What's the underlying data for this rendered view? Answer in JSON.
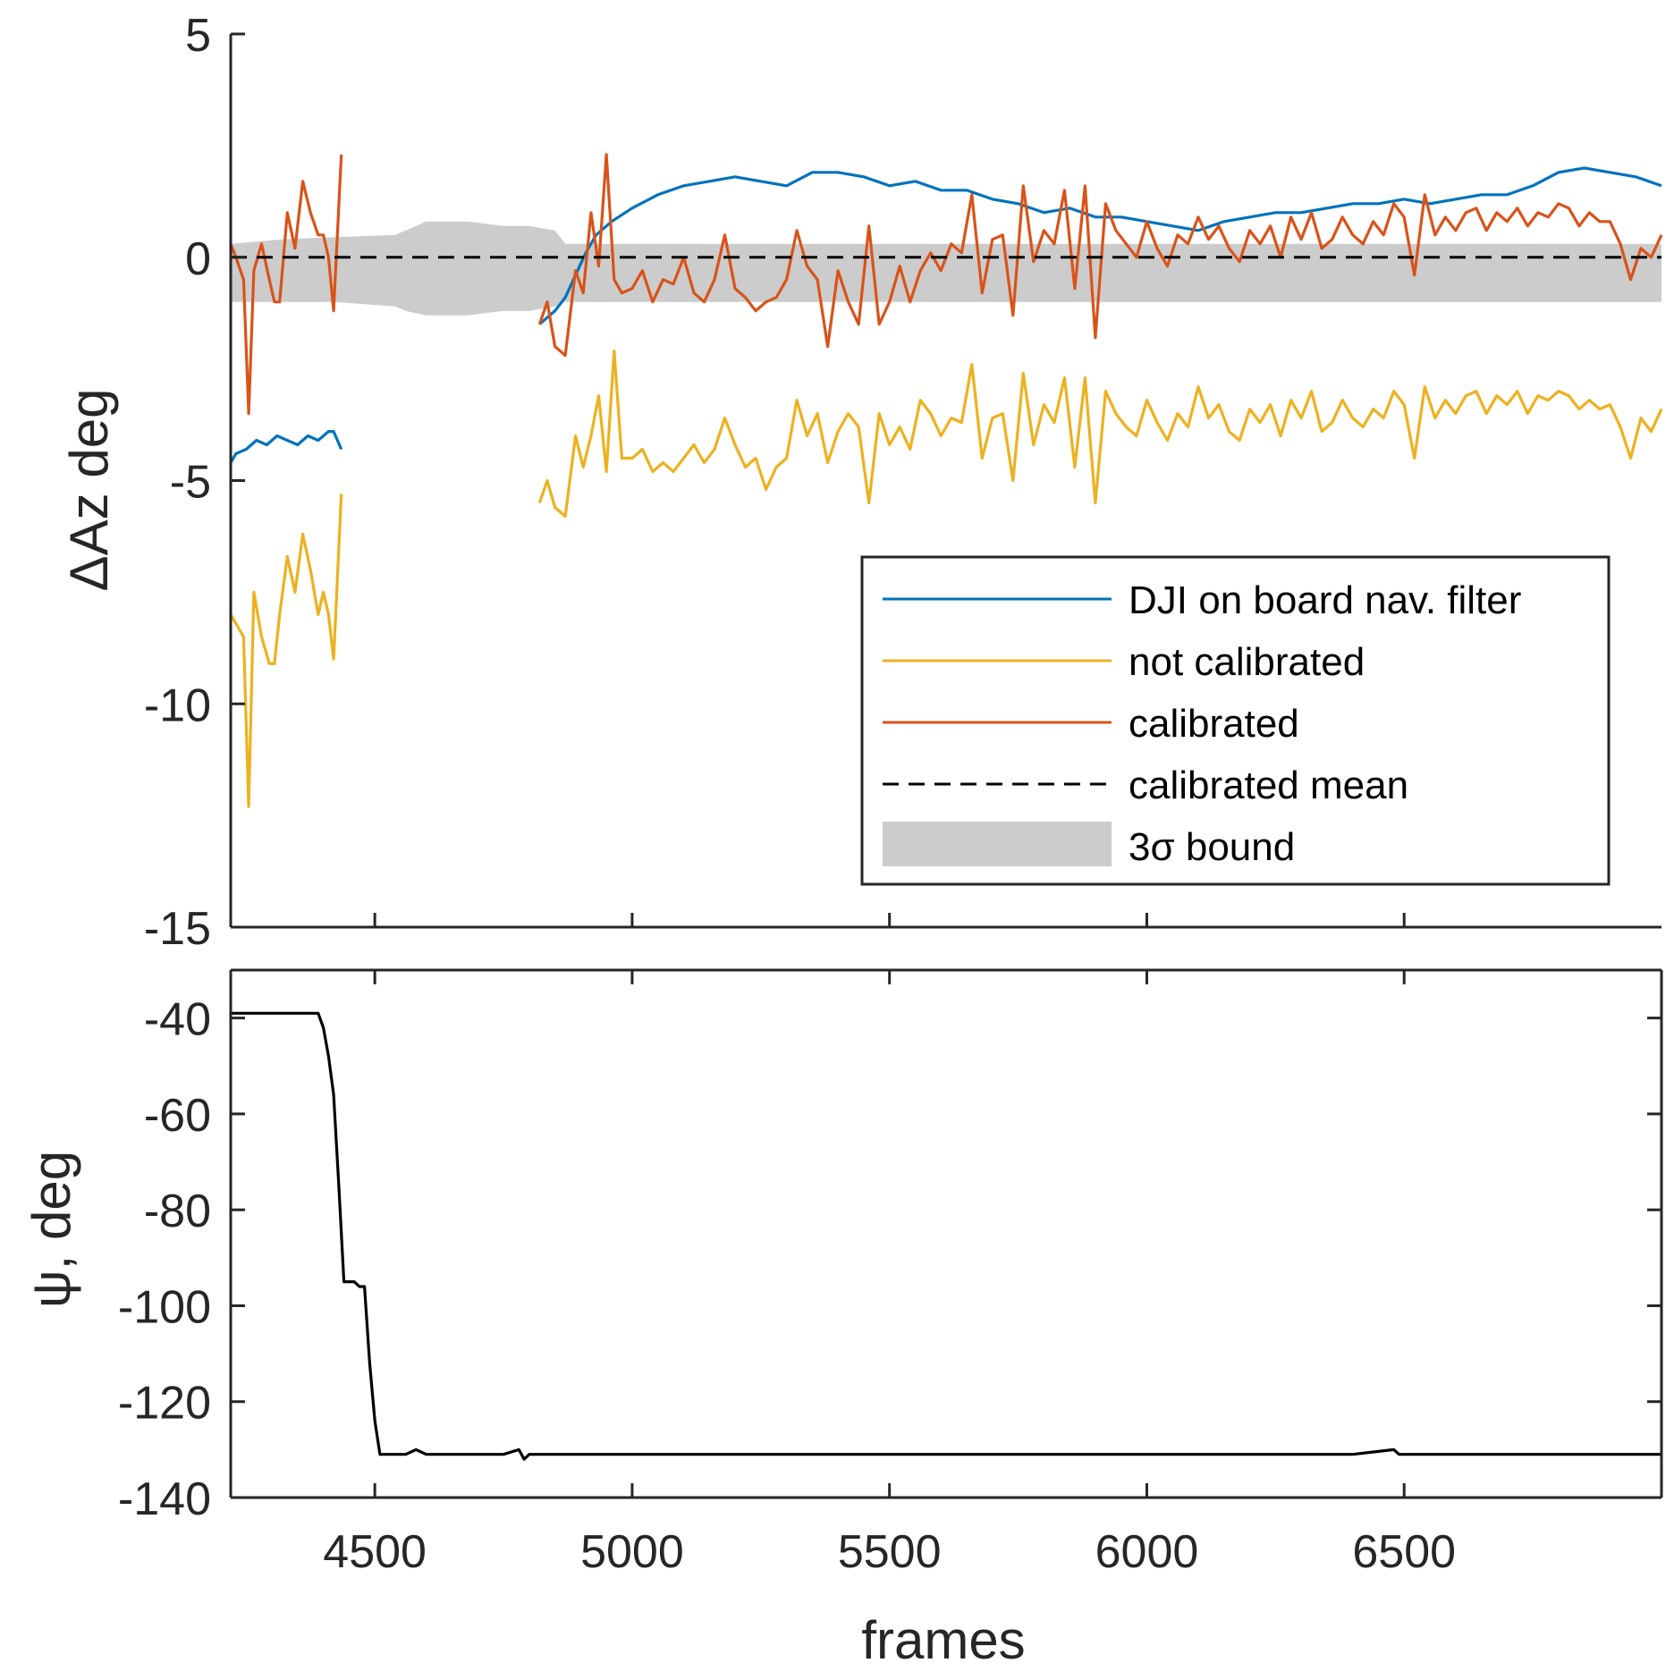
{
  "chart_data": [
    {
      "type": "line",
      "ylabel": "ΔAz deg",
      "xlim": [
        4220,
        7000
      ],
      "ylim": [
        -15,
        5
      ],
      "xticks": [
        4500,
        5000,
        5500,
        6000,
        6500
      ],
      "yticks": [
        5,
        0,
        -5,
        -10,
        -15
      ],
      "ytick_labels": [
        "5",
        "0",
        "-5",
        "-10",
        "-15"
      ],
      "colors": {
        "dji": "#0072BD",
        "not_calibrated": "#EDB120",
        "calibrated": "#D95319",
        "mean": "#000000",
        "bound": "#cccccc"
      },
      "calibrated_mean": 0.0,
      "legend": {
        "position": "lower-right",
        "entries": [
          "DJI on board nav. filter",
          "not calibrated",
          "calibrated",
          "calibrated mean",
          "3σ bound"
        ]
      },
      "bound": {
        "name": "3σ bound",
        "x": [
          4220,
          4320,
          4420,
          4540,
          4560,
          4600,
          4680,
          4750,
          4800,
          4850,
          4870,
          4900,
          4950,
          7000
        ],
        "upper": [
          0.3,
          0.4,
          0.45,
          0.5,
          0.6,
          0.8,
          0.8,
          0.7,
          0.7,
          0.6,
          0.3,
          0.3,
          0.3,
          0.3
        ],
        "lower": [
          -1.0,
          -1.0,
          -1.0,
          -1.1,
          -1.2,
          -1.3,
          -1.3,
          -1.2,
          -1.2,
          -1.1,
          -1.0,
          -1.0,
          -1.0,
          -1.0
        ]
      },
      "series": [
        {
          "name": "DJI on board nav. filter",
          "segments": [
            {
              "x": [
                4220,
                4230,
                4250,
                4270,
                4290,
                4310,
                4330,
                4350,
                4370,
                4390,
                4410,
                4420,
                4435
              ],
              "y": [
                -4.6,
                -4.4,
                -4.3,
                -4.1,
                -4.2,
                -4.0,
                -4.1,
                -4.2,
                -4.0,
                -4.1,
                -3.9,
                -3.9,
                -4.3
              ]
            },
            {
              "x": [
                4820,
                4850,
                4870,
                4890,
                4910,
                4930,
                4960,
                5000,
                5050,
                5100,
                5150,
                5200,
                5250,
                5300,
                5350,
                5400,
                5450,
                5500,
                5550,
                5600,
                5650,
                5700,
                5750,
                5800,
                5850,
                5900,
                5950,
                6000,
                6050,
                6100,
                6150,
                6200,
                6250,
                6300,
                6350,
                6400,
                6450,
                6500,
                6550,
                6600,
                6650,
                6700,
                6750,
                6800,
                6850,
                6900,
                6950,
                7000
              ],
              "y": [
                -1.5,
                -1.2,
                -0.9,
                -0.4,
                0.1,
                0.5,
                0.8,
                1.1,
                1.4,
                1.6,
                1.7,
                1.8,
                1.7,
                1.6,
                1.9,
                1.9,
                1.8,
                1.6,
                1.7,
                1.5,
                1.5,
                1.3,
                1.2,
                1.0,
                1.1,
                0.9,
                0.9,
                0.8,
                0.7,
                0.6,
                0.8,
                0.9,
                1.0,
                1.0,
                1.1,
                1.2,
                1.2,
                1.3,
                1.2,
                1.3,
                1.4,
                1.4,
                1.6,
                1.9,
                2.0,
                1.9,
                1.8,
                1.6
              ]
            }
          ]
        },
        {
          "name": "not calibrated",
          "segments": [
            {
              "x": [
                4220,
                4230,
                4245,
                4255,
                4265,
                4280,
                4295,
                4305,
                4315,
                4330,
                4345,
                4360,
                4375,
                4390,
                4400,
                4410,
                4420,
                4435
              ],
              "y": [
                -8.0,
                -8.2,
                -8.5,
                -12.3,
                -7.5,
                -8.5,
                -9.1,
                -9.1,
                -8.0,
                -6.7,
                -7.5,
                -6.2,
                -7.0,
                -8.0,
                -7.5,
                -8.0,
                -9.0,
                -5.3
              ]
            },
            {
              "x": [
                4820,
                4835,
                4850,
                4870,
                4890,
                4905,
                4920,
                4935,
                4950,
                4965,
                4980,
                5000,
                5020,
                5040,
                5060,
                5080,
                5100,
                5120,
                5140,
                5160,
                5180,
                5200,
                5220,
                5240,
                5260,
                5280,
                5300,
                5320,
                5340,
                5360,
                5380,
                5400,
                5420,
                5440,
                5460,
                5480,
                5500,
                5520,
                5540,
                5560,
                5580,
                5600,
                5620,
                5640,
                5660,
                5680,
                5700,
                5720,
                5740,
                5760,
                5780,
                5800,
                5820,
                5840,
                5860,
                5880,
                5900,
                5920,
                5940,
                5960,
                5980,
                6000,
                6020,
                6040,
                6060,
                6080,
                6100,
                6120,
                6140,
                6160,
                6180,
                6200,
                6220,
                6240,
                6260,
                6280,
                6300,
                6320,
                6340,
                6360,
                6380,
                6400,
                6420,
                6440,
                6460,
                6480,
                6500,
                6520,
                6540,
                6560,
                6580,
                6600,
                6620,
                6640,
                6660,
                6680,
                6700,
                6720,
                6740,
                6760,
                6780,
                6800,
                6820,
                6840,
                6860,
                6880,
                6900,
                6920,
                6940,
                6960,
                6980,
                7000
              ],
              "y": [
                -5.5,
                -5.0,
                -5.6,
                -5.8,
                -4.0,
                -4.7,
                -4.0,
                -3.1,
                -4.8,
                -2.1,
                -4.5,
                -4.5,
                -4.3,
                -4.8,
                -4.6,
                -4.8,
                -4.5,
                -4.2,
                -4.6,
                -4.3,
                -3.6,
                -4.2,
                -4.7,
                -4.5,
                -5.2,
                -4.7,
                -4.5,
                -3.2,
                -4.0,
                -3.5,
                -4.6,
                -3.9,
                -3.5,
                -3.8,
                -5.5,
                -3.5,
                -4.2,
                -3.8,
                -4.3,
                -3.2,
                -3.5,
                -4.0,
                -3.6,
                -3.7,
                -2.4,
                -4.5,
                -3.6,
                -3.5,
                -5.0,
                -2.6,
                -4.2,
                -3.3,
                -3.7,
                -2.7,
                -4.7,
                -2.7,
                -5.5,
                -3.0,
                -3.5,
                -3.8,
                -4.0,
                -3.2,
                -3.7,
                -4.1,
                -3.5,
                -3.8,
                -2.9,
                -3.6,
                -3.3,
                -3.9,
                -4.1,
                -3.4,
                -3.7,
                -3.3,
                -4.0,
                -3.2,
                -3.6,
                -3.0,
                -3.9,
                -3.7,
                -3.2,
                -3.6,
                -3.8,
                -3.4,
                -3.6,
                -3.0,
                -3.3,
                -4.5,
                -2.9,
                -3.6,
                -3.2,
                -3.5,
                -3.1,
                -3.0,
                -3.5,
                -3.1,
                -3.3,
                -3.0,
                -3.5,
                -3.1,
                -3.2,
                -3.0,
                -3.1,
                -3.4,
                -3.2,
                -3.4,
                -3.3,
                -3.8,
                -4.5,
                -3.6,
                -3.9,
                -3.4
              ]
            }
          ]
        },
        {
          "name": "calibrated",
          "segments": [
            {
              "x": [
                4220,
                4230,
                4245,
                4255,
                4265,
                4280,
                4295,
                4305,
                4315,
                4330,
                4345,
                4360,
                4375,
                4390,
                4400,
                4410,
                4420,
                4435
              ],
              "y": [
                0.3,
                0.0,
                -0.5,
                -3.5,
                -0.3,
                0.3,
                -0.5,
                -1.0,
                -1.0,
                1.0,
                0.2,
                1.7,
                1.0,
                0.5,
                0.5,
                0.0,
                -1.2,
                2.3
              ]
            },
            {
              "x": [
                4820,
                4835,
                4850,
                4870,
                4890,
                4905,
                4920,
                4935,
                4950,
                4965,
                4980,
                5000,
                5020,
                5040,
                5060,
                5080,
                5100,
                5120,
                5140,
                5160,
                5180,
                5200,
                5220,
                5240,
                5260,
                5280,
                5300,
                5320,
                5340,
                5360,
                5380,
                5400,
                5420,
                5440,
                5460,
                5480,
                5500,
                5520,
                5540,
                5560,
                5580,
                5600,
                5620,
                5640,
                5660,
                5680,
                5700,
                5720,
                5740,
                5760,
                5780,
                5800,
                5820,
                5840,
                5860,
                5880,
                5900,
                5920,
                5940,
                5960,
                5980,
                6000,
                6020,
                6040,
                6060,
                6080,
                6100,
                6120,
                6140,
                6160,
                6180,
                6200,
                6220,
                6240,
                6260,
                6280,
                6300,
                6320,
                6340,
                6360,
                6380,
                6400,
                6420,
                6440,
                6460,
                6480,
                6500,
                6520,
                6540,
                6560,
                6580,
                6600,
                6620,
                6640,
                6660,
                6680,
                6700,
                6720,
                6740,
                6760,
                6780,
                6800,
                6820,
                6840,
                6860,
                6880,
                6900,
                6920,
                6940,
                6960,
                6980,
                7000
              ],
              "y": [
                -1.5,
                -1.0,
                -2.0,
                -2.2,
                -0.3,
                -0.8,
                1.0,
                -0.2,
                2.3,
                -0.5,
                -0.8,
                -0.7,
                -0.3,
                -1.0,
                -0.5,
                -0.6,
                0.0,
                -0.8,
                -1.0,
                -0.5,
                0.5,
                -0.7,
                -0.9,
                -1.2,
                -1.0,
                -0.9,
                -0.5,
                0.6,
                -0.2,
                -0.5,
                -2.0,
                -0.3,
                -1.0,
                -1.5,
                0.7,
                -1.5,
                -1.0,
                -0.2,
                -1.0,
                -0.3,
                0.1,
                -0.3,
                0.3,
                0.1,
                1.4,
                -0.8,
                0.4,
                0.5,
                -1.3,
                1.6,
                -0.1,
                0.6,
                0.3,
                1.5,
                -0.7,
                1.6,
                -1.8,
                1.2,
                0.6,
                0.3,
                0.0,
                0.8,
                0.2,
                -0.2,
                0.5,
                0.3,
                0.9,
                0.4,
                0.7,
                0.2,
                -0.1,
                0.6,
                0.3,
                0.7,
                0.0,
                0.9,
                0.4,
                1.0,
                0.2,
                0.4,
                0.9,
                0.5,
                0.3,
                0.8,
                0.5,
                1.2,
                0.9,
                -0.4,
                1.4,
                0.5,
                0.9,
                0.6,
                1.0,
                1.1,
                0.6,
                1.0,
                0.8,
                1.1,
                0.7,
                1.0,
                0.9,
                1.2,
                1.1,
                0.7,
                1.0,
                0.8,
                0.8,
                0.3,
                -0.5,
                0.2,
                0.0,
                0.5
              ]
            }
          ]
        }
      ]
    },
    {
      "type": "line",
      "xlabel": "frames",
      "ylabel": "ψ, deg",
      "xlim": [
        4220,
        7000
      ],
      "ylim": [
        -140,
        -30
      ],
      "xticks": [
        4500,
        5000,
        5500,
        6000,
        6500
      ],
      "xtick_labels": [
        "4500",
        "5000",
        "5500",
        "6000",
        "6500"
      ],
      "yticks": [
        -40,
        -60,
        -80,
        -100,
        -120,
        -140
      ],
      "ytick_labels": [
        "-40",
        "-60",
        "-80",
        "-100",
        "-120",
        "-140"
      ],
      "color": "#000000",
      "series": [
        {
          "name": "ψ",
          "x": [
            4220,
            4300,
            4390,
            4400,
            4410,
            4420,
            4430,
            4440,
            4450,
            4460,
            4470,
            4480,
            4490,
            4500,
            4510,
            4520,
            4530,
            4560,
            4580,
            4600,
            4650,
            4700,
            4750,
            4780,
            4790,
            4800,
            4900,
            5000,
            5200,
            5400,
            5600,
            5800,
            6000,
            6200,
            6400,
            6480,
            6490,
            6500,
            6700,
            7000
          ],
          "y": [
            -39,
            -39,
            -39,
            -42,
            -48,
            -56,
            -75,
            -95,
            -95,
            -95,
            -96,
            -96,
            -112,
            -124,
            -131,
            -131,
            -131,
            -131,
            -130,
            -131,
            -131,
            -131,
            -131,
            -130,
            -132,
            -131,
            -131,
            -131,
            -131,
            -131,
            -131,
            -131,
            -131,
            -131,
            -131,
            -130,
            -131,
            -131,
            -131,
            -131
          ]
        }
      ]
    }
  ]
}
